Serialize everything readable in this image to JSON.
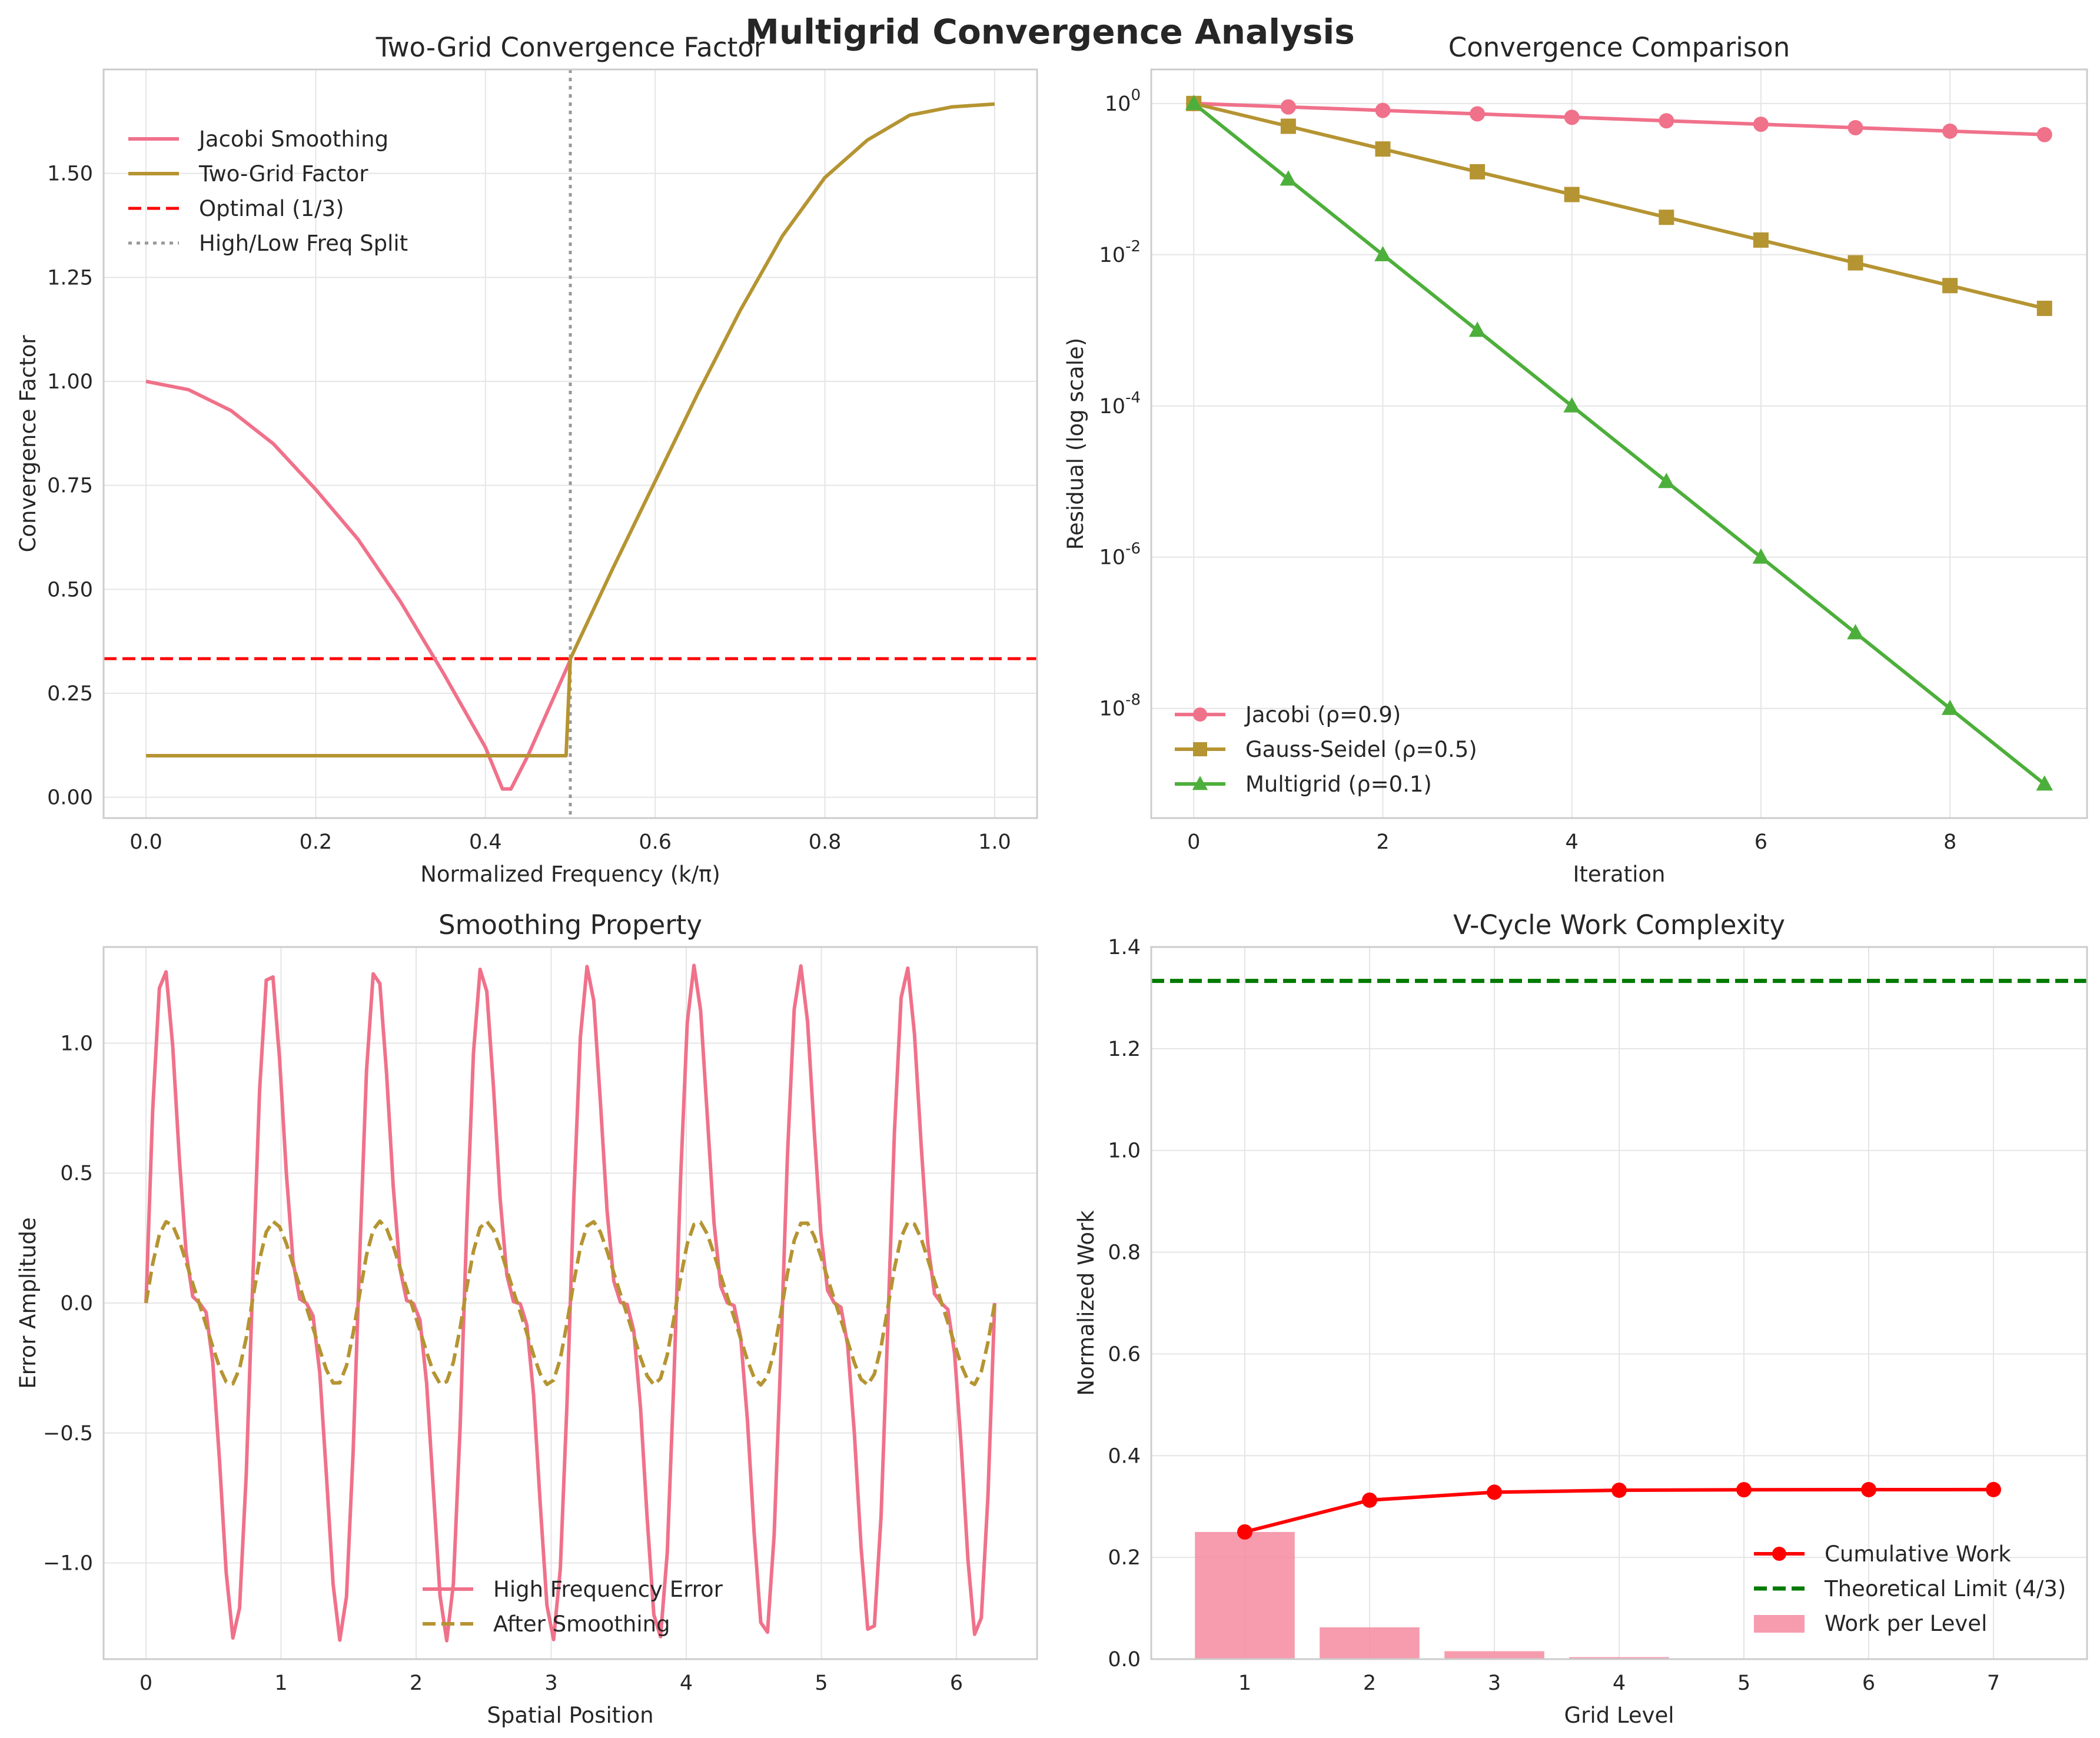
{
  "figure_title": "Multigrid Convergence Analysis",
  "colors": {
    "pink": "#f0718a",
    "gold": "#b59432",
    "green": "#4daf3b",
    "red": "#ff0000",
    "gray": "#999999",
    "darkgreen": "#007a00",
    "barfill": "#f48ba0",
    "grid": "#e5e5e5",
    "spine": "#cccccc"
  },
  "chart_data": [
    {
      "id": "two-grid",
      "type": "line",
      "title": "Two-Grid Convergence Factor",
      "xlabel": "Normalized Frequency (k/π)",
      "ylabel": "Convergence Factor",
      "xlim": [
        -0.05,
        1.05
      ],
      "ylim": [
        -0.05,
        1.75
      ],
      "xticks": [
        0.0,
        0.2,
        0.4,
        0.6,
        0.8,
        1.0
      ],
      "xtick_labels": [
        "0.0",
        "0.2",
        "0.4",
        "0.6",
        "0.8",
        "1.0"
      ],
      "yticks": [
        0.0,
        0.25,
        0.5,
        0.75,
        1.0,
        1.25,
        1.5
      ],
      "ytick_labels": [
        "0.00",
        "0.25",
        "0.50",
        "0.75",
        "1.00",
        "1.25",
        "1.50"
      ],
      "grid": true,
      "legend_position": "upper-left",
      "series": [
        {
          "name": "Jacobi Smoothing",
          "color": "#f0718a",
          "style": "solid",
          "x": [
            0,
            0.05,
            0.1,
            0.15,
            0.2,
            0.25,
            0.3,
            0.35,
            0.4,
            0.42,
            0.43,
            0.45,
            0.5
          ],
          "y": [
            1.0,
            0.98,
            0.93,
            0.85,
            0.74,
            0.62,
            0.47,
            0.3,
            0.12,
            0.02,
            0.02,
            0.1,
            0.33
          ]
        },
        {
          "name": "Two-Grid Factor",
          "color": "#b59432",
          "style": "solid",
          "x": [
            0,
            0.495,
            0.5,
            0.55,
            0.6,
            0.65,
            0.7,
            0.75,
            0.8,
            0.85,
            0.9,
            0.95,
            1.0
          ],
          "y": [
            0.1,
            0.1,
            0.333,
            0.55,
            0.76,
            0.97,
            1.17,
            1.35,
            1.49,
            1.58,
            1.64,
            1.66,
            1.667
          ]
        }
      ],
      "reference_lines": [
        {
          "name": "Optimal (1/3)",
          "orientation": "horizontal",
          "value": 0.3333,
          "color": "#ff0000",
          "style": "dashed"
        },
        {
          "name": "High/Low Freq Split",
          "orientation": "vertical",
          "value": 0.5,
          "color": "#999999",
          "style": "dotted"
        }
      ]
    },
    {
      "id": "convergence-comparison",
      "type": "line",
      "title": "Convergence Comparison",
      "xlabel": "Iteration",
      "ylabel": "Residual (log scale)",
      "xscale": "linear",
      "yscale": "log",
      "xlim": [
        -0.45,
        9.45
      ],
      "ylim_log10": [
        -9.45,
        0.45
      ],
      "xticks": [
        0,
        2,
        4,
        6,
        8
      ],
      "xtick_labels": [
        "0",
        "2",
        "4",
        "6",
        "8"
      ],
      "yticks_log10": [
        0,
        -2,
        -4,
        -6,
        -8
      ],
      "ytick_labels": [
        "10^0",
        "10^-2",
        "10^-4",
        "10^-6",
        "10^-8"
      ],
      "grid": true,
      "legend_position": "lower-left",
      "x": [
        0,
        1,
        2,
        3,
        4,
        5,
        6,
        7,
        8,
        9
      ],
      "series": [
        {
          "name": "Jacobi (ρ=0.9)",
          "color": "#f0718a",
          "marker": "circle",
          "values": [
            1.0,
            0.9,
            0.81,
            0.729,
            0.6561,
            0.5905,
            0.5314,
            0.4783,
            0.4305,
            0.3874
          ]
        },
        {
          "name": "Gauss-Seidel (ρ=0.5)",
          "color": "#b59432",
          "marker": "square",
          "values": [
            1.0,
            0.5,
            0.25,
            0.125,
            0.0625,
            0.03125,
            0.015625,
            0.0078125,
            0.00390625,
            0.001953125
          ]
        },
        {
          "name": "Multigrid (ρ=0.1)",
          "color": "#4daf3b",
          "marker": "triangle",
          "values": [
            1.0,
            0.1,
            0.01,
            0.001,
            0.0001,
            1e-05,
            1e-06,
            1e-07,
            1e-08,
            1e-09
          ]
        }
      ]
    },
    {
      "id": "smoothing",
      "type": "line",
      "title": "Smoothing Property",
      "xlabel": "Spatial Position",
      "ylabel": "Error Amplitude",
      "xlim": [
        -0.314,
        6.597
      ],
      "ylim": [
        -1.37,
        1.37
      ],
      "xticks": [
        0,
        1,
        2,
        3,
        4,
        5,
        6
      ],
      "xtick_labels": [
        "0",
        "1",
        "2",
        "3",
        "4",
        "5",
        "6"
      ],
      "yticks": [
        -1.0,
        -0.5,
        0.0,
        0.5,
        1.0
      ],
      "ytick_labels": [
        "−1.0",
        "−0.5",
        "0.0",
        "0.5",
        "1.0"
      ],
      "grid": true,
      "legend_position": "lower-center",
      "x_range": [
        0,
        6.2832
      ],
      "num_points": 128,
      "series": [
        {
          "name": "High Frequency Error",
          "color": "#f0718a",
          "style": "solid",
          "formula": "sin(8x) + 0.5*sin(16x)"
        },
        {
          "name": "After Smoothing",
          "color": "#b59432",
          "style": "dashed",
          "formula": "0.3*sin(8x) + 0.05*sin(16x)"
        }
      ]
    },
    {
      "id": "vcycle-work",
      "type": "bar",
      "title": "V-Cycle Work Complexity",
      "xlabel": "Grid Level",
      "ylabel": "Normalized Work",
      "xlim": [
        0.25,
        7.75
      ],
      "ylim": [
        0,
        1.4
      ],
      "xticks": [
        1,
        2,
        3,
        4,
        5,
        6,
        7
      ],
      "xtick_labels": [
        "1",
        "2",
        "3",
        "4",
        "5",
        "6",
        "7"
      ],
      "yticks": [
        0.0,
        0.2,
        0.4,
        0.6,
        0.8,
        1.0,
        1.2,
        1.4
      ],
      "ytick_labels": [
        "0.0",
        "0.2",
        "0.4",
        "0.6",
        "0.8",
        "1.0",
        "1.2",
        "1.4"
      ],
      "grid": true,
      "legend_position": "lower-right",
      "categories": [
        1,
        2,
        3,
        4,
        5,
        6,
        7
      ],
      "series": [
        {
          "name": "Cumulative Work",
          "color": "#ff0000",
          "kind": "line",
          "marker": "circle",
          "values": [
            0.25,
            0.3125,
            0.328125,
            0.332031,
            0.333008,
            0.333252,
            0.333313
          ]
        },
        {
          "name": "Theoretical Limit (4/3)",
          "color": "#007a00",
          "kind": "hline",
          "style": "dashed",
          "value": 1.3333
        },
        {
          "name": "Work per Level",
          "color": "#f48ba0",
          "kind": "bar",
          "values": [
            0.25,
            0.0625,
            0.015625,
            0.003906,
            0.000977,
            0.000244,
            6.1e-05
          ]
        }
      ]
    }
  ]
}
